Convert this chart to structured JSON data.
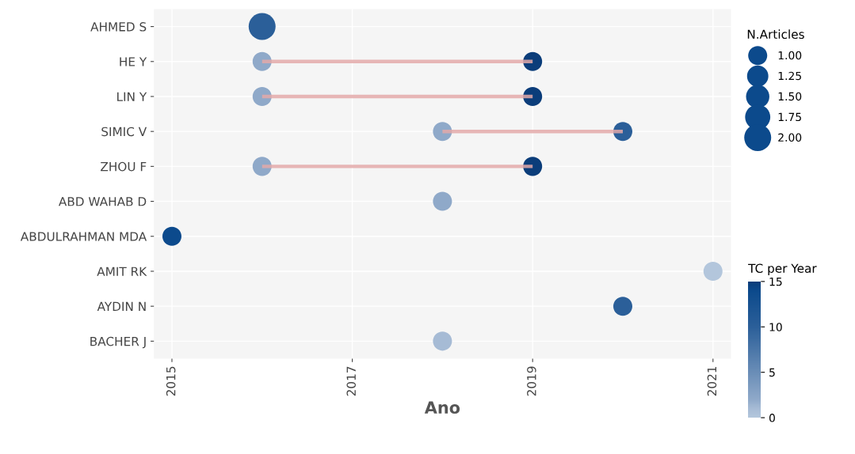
{
  "chart_data": {
    "type": "bubble",
    "orientation": "horizontal",
    "xlabel": "Ano",
    "categories": [
      "AHMED S",
      "HE Y",
      "LIN Y",
      "SIMIC V",
      "ZHOU F",
      "ABD WAHAB D",
      "ABDULRAHMAN MDA",
      "AMIT RK",
      "AYDIN N",
      "BACHER J"
    ],
    "series": [
      {
        "type": "bar",
        "color": "#e3a9a9",
        "base": [
          null,
          2016,
          2016,
          2018,
          2016,
          null,
          null,
          null,
          null,
          null
        ],
        "values": [
          null,
          3,
          3,
          2,
          3,
          null,
          null,
          null,
          null,
          null
        ]
      },
      {
        "type": "bubble",
        "values": [
          2016,
          2016,
          2016,
          2018,
          2016,
          2018,
          2015,
          2021,
          2020,
          2018
        ],
        "sizes": [
          2,
          1,
          1,
          1,
          1,
          1,
          1,
          1,
          1,
          1
        ],
        "cvalues": [
          10,
          2,
          2,
          2,
          2,
          2,
          14,
          0,
          10,
          1
        ],
        "colors": [
          "#2b5f99",
          "#8fa9c9",
          "#8fa9c9",
          "#8fa9c9",
          "#8fa9c9",
          "#8fa9c9",
          "#0c4a8c",
          "#b3c6dc",
          "#2b5f99",
          "#a6bbd5"
        ]
      },
      {
        "type": "bubble",
        "values": [
          null,
          2019,
          2019,
          2020,
          2019,
          null,
          null,
          null,
          null,
          null
        ],
        "sizes": [
          null,
          1,
          1,
          1,
          1,
          null,
          null,
          null,
          null,
          null
        ],
        "cvalues": [
          null,
          15,
          15,
          10,
          15,
          null,
          null,
          null,
          null,
          null
        ],
        "colors": [
          null,
          "#0b3d7a",
          "#0b3d7a",
          "#2b5f99",
          "#0b3d7a",
          null,
          null,
          null,
          null,
          null
        ]
      }
    ],
    "xlim": [
      2014.8,
      2021.2
    ],
    "xticks": [
      2015,
      2017,
      2019,
      2021
    ],
    "size_legend": [
      {
        "value": 1,
        "label": "1.00"
      },
      {
        "value": 1.25,
        "label": "1.25"
      },
      {
        "value": 1.5,
        "label": "1.50"
      },
      {
        "value": 1.75,
        "label": "1.75"
      },
      {
        "value": 2,
        "label": "2.00"
      }
    ],
    "legend_title": "N.Articles",
    "clabel": "TC per Year",
    "clim": [
      0,
      15
    ],
    "cticks": [
      {
        "value": 0,
        "label": "0"
      },
      {
        "value": 5,
        "label": "5"
      },
      {
        "value": 10,
        "label": "10"
      },
      {
        "value": 15,
        "label": "15"
      }
    ],
    "grid": true
  }
}
